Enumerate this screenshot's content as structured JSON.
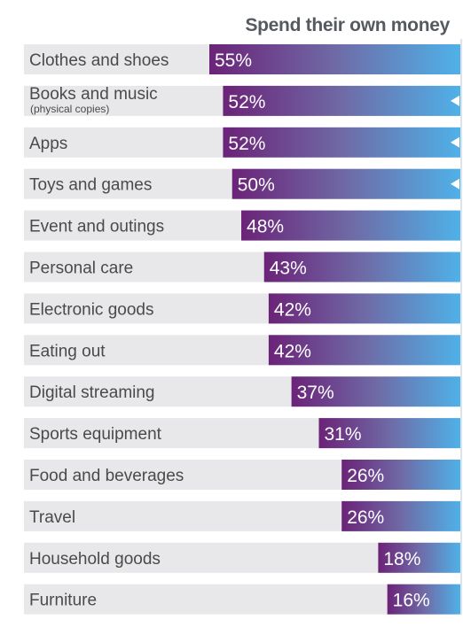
{
  "title": "Spend their own money",
  "colors": {
    "bar_start": "#6b2378",
    "bar_mid": "#6f6aa6",
    "bar_end": "#4fb1e8",
    "row_background": "#e8e8ea",
    "label_text": "#4a4a4a",
    "title_text": "#555a60"
  },
  "chart_data": {
    "type": "bar",
    "orientation": "horizontal",
    "title": "Spend their own money",
    "categories": [
      "Clothes and shoes",
      "Books and music",
      "Apps",
      "Toys and games",
      "Event and outings",
      "Personal care",
      "Electronic goods",
      "Eating out",
      "Digital streaming",
      "Sports equipment",
      "Food and beverages",
      "Travel",
      "Household goods",
      "Furniture"
    ],
    "sublabels": [
      "",
      "(physical copies)",
      "",
      "",
      "",
      "",
      "",
      "",
      "",
      "",
      "",
      "",
      "",
      ""
    ],
    "values": [
      55,
      52,
      52,
      50,
      48,
      43,
      42,
      42,
      37,
      31,
      26,
      26,
      18,
      16
    ],
    "value_labels": [
      "55%",
      "52%",
      "52%",
      "50%",
      "48%",
      "43%",
      "42%",
      "42%",
      "37%",
      "31%",
      "26%",
      "26%",
      "18%",
      "16%"
    ],
    "arrow_markers": [
      false,
      true,
      true,
      true,
      false,
      false,
      false,
      false,
      false,
      false,
      false,
      false,
      false,
      false
    ],
    "xlim": [
      0,
      55
    ],
    "legend": "none",
    "grid": false
  }
}
